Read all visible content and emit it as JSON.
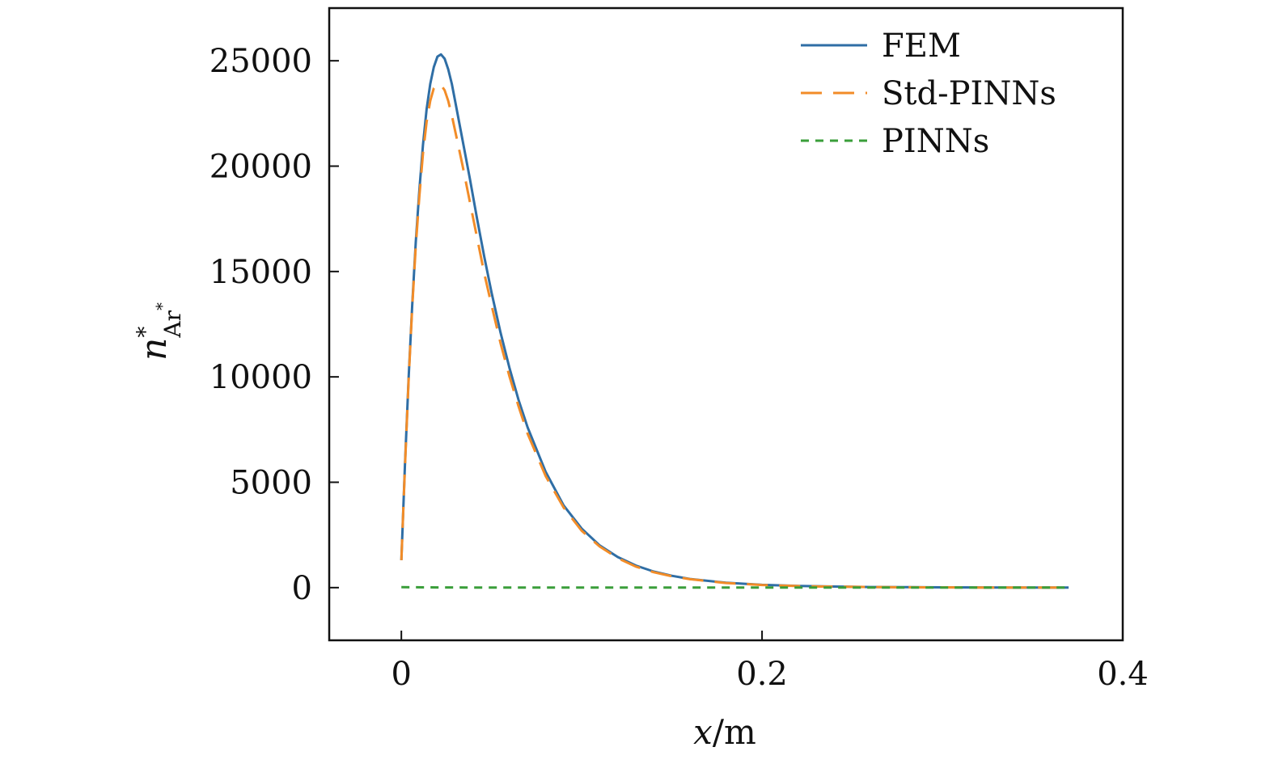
{
  "chart_data": {
    "type": "line",
    "xlabel": {
      "var": "x",
      "sep": "/",
      "unit": "m"
    },
    "ylabel": {
      "base": "n",
      "sup": "*",
      "sub": "Ar",
      "subsup": "*"
    },
    "xlim": [
      -0.04,
      0.4
    ],
    "ylim": [
      -2500,
      27500
    ],
    "xticks": [
      0,
      0.2,
      0.4
    ],
    "xtick_labels": [
      "0",
      "0.2",
      "0.4"
    ],
    "yticks": [
      0,
      5000,
      10000,
      15000,
      20000,
      25000
    ],
    "ytick_labels": [
      "0",
      "5000",
      "10000",
      "15000",
      "20000",
      "25000"
    ],
    "grid": false,
    "legend_position": "top-right",
    "series": [
      {
        "name": "FEM",
        "color": "#2f6ea5",
        "style": "solid",
        "x": [
          0.0,
          0.002,
          0.004,
          0.006,
          0.008,
          0.01,
          0.012,
          0.014,
          0.016,
          0.018,
          0.02,
          0.022,
          0.024,
          0.026,
          0.028,
          0.03,
          0.034,
          0.038,
          0.042,
          0.046,
          0.05,
          0.055,
          0.06,
          0.065,
          0.07,
          0.08,
          0.09,
          0.1,
          0.11,
          0.12,
          0.13,
          0.14,
          0.15,
          0.16,
          0.18,
          0.2,
          0.22,
          0.24,
          0.26,
          0.28,
          0.3,
          0.32,
          0.34,
          0.36,
          0.37
        ],
        "y": [
          1300,
          5800,
          9900,
          13400,
          16400,
          18900,
          21000,
          22700,
          23900,
          24700,
          25200,
          25300,
          25100,
          24600,
          23900,
          23000,
          21200,
          19400,
          17500,
          15700,
          14000,
          12100,
          10400,
          8900,
          7600,
          5500,
          3900,
          2800,
          2000,
          1450,
          1050,
          760,
          560,
          410,
          230,
          130,
          80,
          50,
          30,
          20,
          12,
          8,
          5,
          3,
          2
        ]
      },
      {
        "name": "Std-PINNs",
        "color": "#f28c28",
        "style": "long-dash",
        "x": [
          0.0,
          0.002,
          0.004,
          0.006,
          0.008,
          0.01,
          0.012,
          0.014,
          0.016,
          0.018,
          0.02,
          0.022,
          0.024,
          0.026,
          0.028,
          0.03,
          0.034,
          0.038,
          0.042,
          0.046,
          0.05,
          0.055,
          0.06,
          0.065,
          0.07,
          0.08,
          0.09,
          0.1,
          0.11,
          0.12,
          0.13,
          0.14,
          0.15,
          0.16,
          0.18,
          0.2,
          0.22,
          0.24,
          0.26,
          0.28,
          0.3,
          0.32,
          0.34,
          0.36,
          0.37
        ],
        "y": [
          1300,
          5700,
          9800,
          13300,
          16200,
          18600,
          20600,
          22100,
          23100,
          23700,
          23850,
          23850,
          23600,
          23100,
          22400,
          21600,
          20000,
          18300,
          16600,
          14900,
          13400,
          11600,
          10000,
          8600,
          7300,
          5300,
          3800,
          2700,
          1950,
          1400,
          1000,
          730,
          540,
          400,
          220,
          125,
          75,
          45,
          28,
          18,
          11,
          7,
          4,
          2,
          1
        ]
      },
      {
        "name": "PINNs",
        "color": "#3a9e3a",
        "style": "short-dash",
        "x": [
          0.0,
          0.02,
          0.05,
          0.1,
          0.15,
          0.2,
          0.25,
          0.3,
          0.35,
          0.37
        ],
        "y": [
          20,
          8,
          0,
          0,
          0,
          0,
          0,
          0,
          0,
          0
        ]
      }
    ]
  }
}
